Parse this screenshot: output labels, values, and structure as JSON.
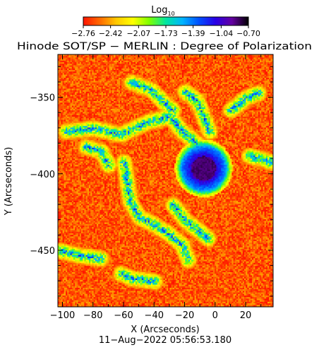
{
  "chart_data": {
    "type": "heatmap",
    "title": "Hinode SOT/SP − MERLIN : Degree of Polarization",
    "xlabel": "X (Arcseconds)",
    "ylabel": "Y (Arcseconds)",
    "timestamp": "11−Aug−2022 05:56:53.180",
    "colorbar": {
      "label_main": "Log",
      "label_sub": "10",
      "ticks": [
        "−2.76",
        "−2.42",
        "−2.07",
        "−1.73",
        "−1.39",
        "−1.04",
        "−0.70"
      ],
      "range": [
        -2.76,
        -0.7
      ],
      "colors": [
        "#ff1400",
        "#ff6a00",
        "#ffc800",
        "#ffff00",
        "#7dff00",
        "#00e6a0",
        "#00b4ff",
        "#0050ff",
        "#2800e6",
        "#6400a0",
        "#000000"
      ]
    },
    "xlim": [
      -103,
      38
    ],
    "ylim": [
      -487,
      -322
    ],
    "xticks": [
      -100,
      -80,
      -60,
      -40,
      -20,
      0,
      20
    ],
    "yticks": [
      -350,
      -400,
      -450
    ],
    "xtick_labels": [
      "−100",
      "−80",
      "−60",
      "−40",
      "−20",
      "0",
      "20"
    ],
    "ytick_labels": [
      "−350",
      "−400",
      "−450"
    ],
    "features": {
      "sunspot_center": [
        -8,
        -396
      ],
      "sunspot_umbra_radius": 8,
      "sunspot_penumbra_radius": 15,
      "background_level": -2.6,
      "network_level": -1.6,
      "umbra_level": -0.8
    }
  }
}
